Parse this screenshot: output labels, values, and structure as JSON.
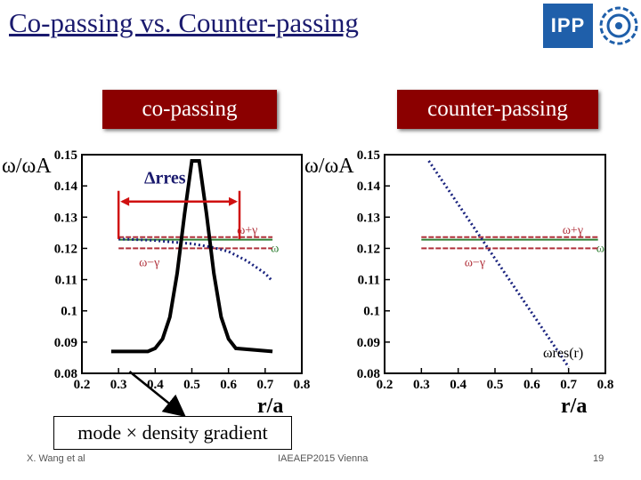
{
  "slide": {
    "title": "Co-passing vs. Counter-passing",
    "logo_text": "IPP",
    "banner_left": "co-passing",
    "banner_right": "counter-passing",
    "caption": "mode × density gradient",
    "footer_author": "X. Wang et al",
    "footer_event": "IAEAEP2015 Vienna",
    "footer_page": "19"
  },
  "chart_data": [
    {
      "type": "line",
      "ylabel": "ω/ωA",
      "xlabel": "r/a",
      "xlim": [
        0.2,
        0.8
      ],
      "ylim": [
        0.08,
        0.15
      ],
      "x_ticks": [
        "0.2",
        "0.3",
        "0.4",
        "0.5",
        "0.6",
        "0.7",
        "0.8"
      ],
      "y_ticks": [
        "0.15",
        "0.14",
        "0.13",
        "0.12",
        "0.11",
        "0.1",
        "0.09",
        "0.08"
      ],
      "annotation": "Δrres",
      "series": [
        {
          "name": "ω+γ",
          "color": "#b0303a",
          "style": "dashed",
          "x": [
            0.3,
            0.72
          ],
          "y": [
            0.1236,
            0.1236
          ]
        },
        {
          "name": "ω",
          "color": "#2e7d32",
          "style": "solid",
          "x": [
            0.3,
            0.72
          ],
          "y": [
            0.1228,
            0.1228
          ]
        },
        {
          "name": "ω−γ",
          "color": "#b0303a",
          "style": "dashed",
          "x": [
            0.3,
            0.72
          ],
          "y": [
            0.12,
            0.12
          ]
        },
        {
          "name": "",
          "color": "#1a237e",
          "style": "dotted",
          "x": [
            0.3,
            0.35,
            0.4,
            0.45,
            0.5,
            0.55,
            0.6,
            0.65,
            0.7,
            0.72
          ],
          "y": [
            0.123,
            0.1228,
            0.1225,
            0.122,
            0.1215,
            0.1205,
            0.119,
            0.116,
            0.112,
            0.1095
          ]
        },
        {
          "name": "",
          "color": "#000000",
          "style": "solid",
          "x": [
            0.28,
            0.38,
            0.4,
            0.42,
            0.44,
            0.46,
            0.48,
            0.5,
            0.52,
            0.54,
            0.56,
            0.58,
            0.6,
            0.62,
            0.72
          ],
          "y": [
            0.087,
            0.087,
            0.088,
            0.091,
            0.098,
            0.112,
            0.131,
            0.148,
            0.148,
            0.131,
            0.112,
            0.098,
            0.091,
            0.088,
            0.087
          ]
        }
      ]
    },
    {
      "type": "line",
      "ylabel": "ω/ωA",
      "xlabel": "r/a",
      "xlim": [
        0.2,
        0.8
      ],
      "ylim": [
        0.08,
        0.15
      ],
      "x_ticks": [
        "0.2",
        "0.3",
        "0.4",
        "0.5",
        "0.6",
        "0.7",
        "0.8"
      ],
      "y_ticks": [
        "0.15",
        "0.14",
        "0.13",
        "0.12",
        "0.11",
        "0.1",
        "0.09",
        "0.08"
      ],
      "annotation": "ωres(r)",
      "series": [
        {
          "name": "ω+γ",
          "color": "#b0303a",
          "style": "dashed",
          "x": [
            0.3,
            0.78
          ],
          "y": [
            0.1236,
            0.1236
          ]
        },
        {
          "name": "ω",
          "color": "#2e7d32",
          "style": "solid",
          "x": [
            0.3,
            0.78
          ],
          "y": [
            0.1228,
            0.1228
          ]
        },
        {
          "name": "ω−γ",
          "color": "#b0303a",
          "style": "dashed",
          "x": [
            0.3,
            0.78
          ],
          "y": [
            0.12,
            0.12
          ]
        },
        {
          "name": "",
          "color": "#1a237e",
          "style": "dotted",
          "x": [
            0.32,
            0.7
          ],
          "y": [
            0.148,
            0.082
          ]
        }
      ]
    }
  ]
}
